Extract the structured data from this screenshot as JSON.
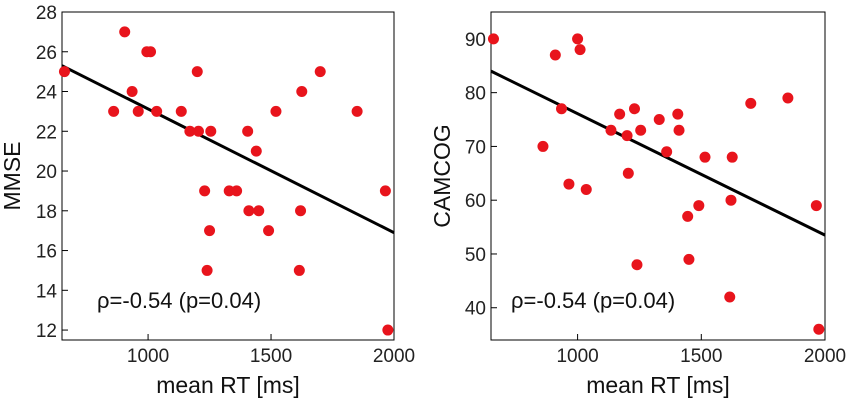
{
  "chart_data": [
    {
      "type": "scatter",
      "title": "",
      "xlabel": "mean RT [ms]",
      "ylabel": "MMSE",
      "xlim": [
        650,
        2000
      ],
      "ylim": [
        11.5,
        28
      ],
      "xticks": [
        1000,
        1500,
        2000
      ],
      "yticks": [
        12,
        14,
        16,
        18,
        20,
        22,
        24,
        26,
        28
      ],
      "annotation": "ρ=-0.54 (p=0.04)",
      "point_color": "#e8141c",
      "line_color": "#000000",
      "fit_line": {
        "x": [
          650,
          2000
        ],
        "y": [
          25.3,
          16.9
        ]
      },
      "points": [
        {
          "x": 660,
          "y": 25
        },
        {
          "x": 860,
          "y": 23
        },
        {
          "x": 905,
          "y": 27
        },
        {
          "x": 935,
          "y": 24
        },
        {
          "x": 960,
          "y": 23
        },
        {
          "x": 995,
          "y": 26
        },
        {
          "x": 1010,
          "y": 26
        },
        {
          "x": 1035,
          "y": 23
        },
        {
          "x": 1135,
          "y": 23
        },
        {
          "x": 1170,
          "y": 22
        },
        {
          "x": 1200,
          "y": 25
        },
        {
          "x": 1205,
          "y": 22
        },
        {
          "x": 1230,
          "y": 19
        },
        {
          "x": 1240,
          "y": 15
        },
        {
          "x": 1250,
          "y": 17
        },
        {
          "x": 1255,
          "y": 22
        },
        {
          "x": 1330,
          "y": 19
        },
        {
          "x": 1360,
          "y": 19
        },
        {
          "x": 1405,
          "y": 22
        },
        {
          "x": 1410,
          "y": 18
        },
        {
          "x": 1440,
          "y": 21
        },
        {
          "x": 1450,
          "y": 18
        },
        {
          "x": 1490,
          "y": 17
        },
        {
          "x": 1520,
          "y": 23
        },
        {
          "x": 1615,
          "y": 15
        },
        {
          "x": 1620,
          "y": 18
        },
        {
          "x": 1625,
          "y": 24
        },
        {
          "x": 1700,
          "y": 25
        },
        {
          "x": 1850,
          "y": 23
        },
        {
          "x": 1965,
          "y": 19
        },
        {
          "x": 1975,
          "y": 12
        }
      ]
    },
    {
      "type": "scatter",
      "title": "",
      "xlabel": "mean RT [ms]",
      "ylabel": "CAMCOG",
      "xlim": [
        650,
        2000
      ],
      "ylim": [
        34,
        95
      ],
      "xticks": [
        1000,
        1500,
        2000
      ],
      "yticks": [
        40,
        50,
        60,
        70,
        80,
        90
      ],
      "annotation": "ρ=-0.54 (p=0.04)",
      "point_color": "#e8141c",
      "line_color": "#000000",
      "fit_line": {
        "x": [
          650,
          2000
        ],
        "y": [
          84,
          53.5
        ]
      },
      "points": [
        {
          "x": 660,
          "y": 90
        },
        {
          "x": 860,
          "y": 70
        },
        {
          "x": 910,
          "y": 87
        },
        {
          "x": 935,
          "y": 77
        },
        {
          "x": 965,
          "y": 63
        },
        {
          "x": 1000,
          "y": 90
        },
        {
          "x": 1010,
          "y": 88
        },
        {
          "x": 1035,
          "y": 62
        },
        {
          "x": 1135,
          "y": 73
        },
        {
          "x": 1170,
          "y": 76
        },
        {
          "x": 1200,
          "y": 72
        },
        {
          "x": 1205,
          "y": 65
        },
        {
          "x": 1230,
          "y": 77
        },
        {
          "x": 1240,
          "y": 48
        },
        {
          "x": 1255,
          "y": 73
        },
        {
          "x": 1330,
          "y": 75
        },
        {
          "x": 1360,
          "y": 69
        },
        {
          "x": 1405,
          "y": 76
        },
        {
          "x": 1410,
          "y": 73
        },
        {
          "x": 1445,
          "y": 57
        },
        {
          "x": 1450,
          "y": 49
        },
        {
          "x": 1490,
          "y": 59
        },
        {
          "x": 1515,
          "y": 68
        },
        {
          "x": 1615,
          "y": 42
        },
        {
          "x": 1620,
          "y": 60
        },
        {
          "x": 1625,
          "y": 68
        },
        {
          "x": 1700,
          "y": 78
        },
        {
          "x": 1850,
          "y": 79
        },
        {
          "x": 1965,
          "y": 59
        },
        {
          "x": 1975,
          "y": 36
        }
      ]
    }
  ]
}
